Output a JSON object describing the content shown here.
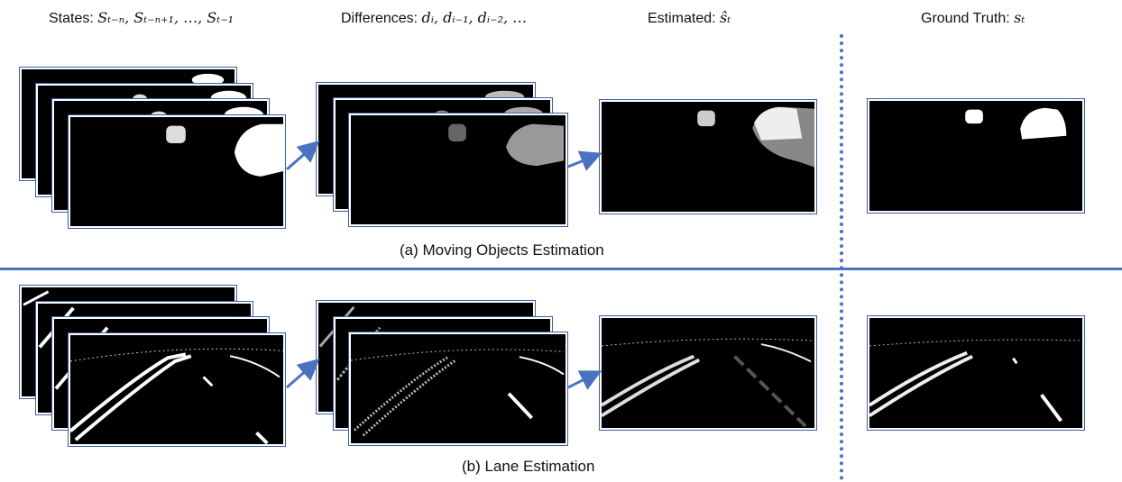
{
  "headers": {
    "states_label": "States: ",
    "states_math": "Sₜ₋ₙ, Sₜ₋ₙ₊₁, …, Sₜ₋₁",
    "differences_label": "Differences: ",
    "differences_math": "dᵢ, dᵢ₋₁, dᵢ₋₂, …",
    "estimated_label": "Estimated: ",
    "estimated_math": "ŝₜ",
    "ground_truth_label": "Ground Truth: ",
    "ground_truth_math": "sₜ"
  },
  "captions": {
    "moving_objects": "(a) Moving Objects Estimation",
    "lane": "(b) Lane Estimation"
  },
  "colors": {
    "accent": "#4a72c0",
    "frame_border": "#3b5ea6",
    "frame_bg": "#000000"
  }
}
